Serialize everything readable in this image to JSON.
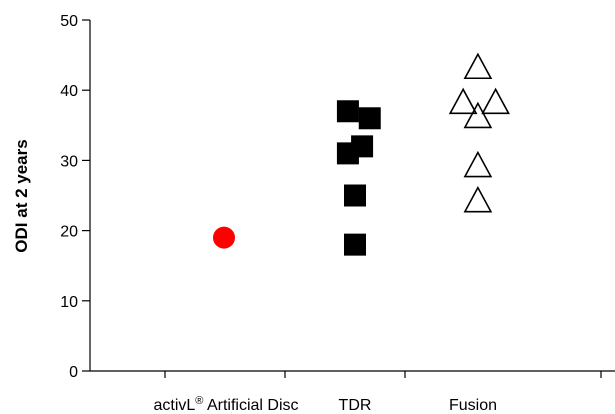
{
  "chart_data": {
    "type": "scatter",
    "title": "",
    "xlabel": "",
    "ylabel": "ODI at 2 years",
    "ylim": [
      0,
      50
    ],
    "yticks": [
      0,
      10,
      20,
      30,
      40,
      50
    ],
    "grid": false,
    "legend": "none",
    "categories": [
      "activL® Artificial Disc",
      "TDR",
      "Fusion"
    ],
    "category_label_parts": {
      "activl_prefix": "activL",
      "activl_superscript": "®",
      "activl_suffix": " Artificial Disc"
    },
    "series": [
      {
        "category": "activL® Artificial Disc",
        "marker": "circle-filled",
        "color": "#ff0000",
        "points": [
          {
            "x": 0,
            "y": 19
          }
        ]
      },
      {
        "category": "TDR",
        "marker": "square-filled",
        "color": "#000000",
        "points": [
          {
            "x": -0.12,
            "y": 37
          },
          {
            "x": 0.25,
            "y": 36
          },
          {
            "x": 0.12,
            "y": 32
          },
          {
            "x": -0.12,
            "y": 31
          },
          {
            "x": 0,
            "y": 25
          },
          {
            "x": 0,
            "y": 18
          }
        ]
      },
      {
        "category": "Fusion",
        "marker": "triangle-open",
        "color": "#000000",
        "points": [
          {
            "x": 0.1,
            "y": 43
          },
          {
            "x": -0.15,
            "y": 38
          },
          {
            "x": 0.4,
            "y": 38
          },
          {
            "x": 0.1,
            "y": 36
          },
          {
            "x": 0.1,
            "y": 29
          },
          {
            "x": 0.1,
            "y": 24
          }
        ]
      }
    ]
  }
}
